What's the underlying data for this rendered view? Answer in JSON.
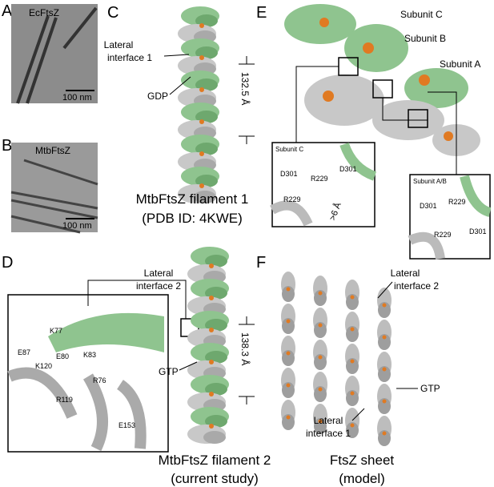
{
  "panel_a": {
    "label": "A",
    "title": "EcFtsZ",
    "scale_bar": "100 nm"
  },
  "panel_b": {
    "label": "B",
    "title": "MtbFtsZ",
    "scale_bar": "100 nm"
  },
  "panel_c": {
    "label": "C",
    "interface": [
      "Lateral",
      "interface 1"
    ],
    "ligand": "GDP",
    "distance": "132.5 Å",
    "caption": [
      "MtbFtsZ filament 1",
      "(PDB ID: 4KWE)"
    ]
  },
  "panel_d": {
    "label": "D",
    "interface": [
      "Lateral",
      "interface 2"
    ],
    "ligand": "GTP",
    "distance": "138.3 Å",
    "residues": [
      "K77",
      "E87",
      "E80",
      "K83",
      "K120",
      "R76",
      "R119",
      "E153"
    ],
    "caption": [
      "MtbFtsZ filament 2",
      "(current study)"
    ]
  },
  "panel_e": {
    "label": "E",
    "subunits": [
      "Subunit C",
      "Subunit B",
      "Subunit A"
    ],
    "inset_1": {
      "title": "Subunit C",
      "residues": [
        "R229",
        "D301",
        "D301",
        "R229"
      ],
      "distance": ">6 Å"
    },
    "inset_2": {
      "title": "Subunit A/B",
      "residues": [
        "D301",
        "R229",
        "R229",
        "D301"
      ]
    }
  },
  "panel_f": {
    "label": "F",
    "interface_top": [
      "Lateral",
      "interface 2"
    ],
    "ligand": "GTP",
    "interface_bottom": [
      "Lateral",
      "interface 1"
    ],
    "caption": [
      "FtsZ sheet",
      "(model)"
    ]
  }
}
